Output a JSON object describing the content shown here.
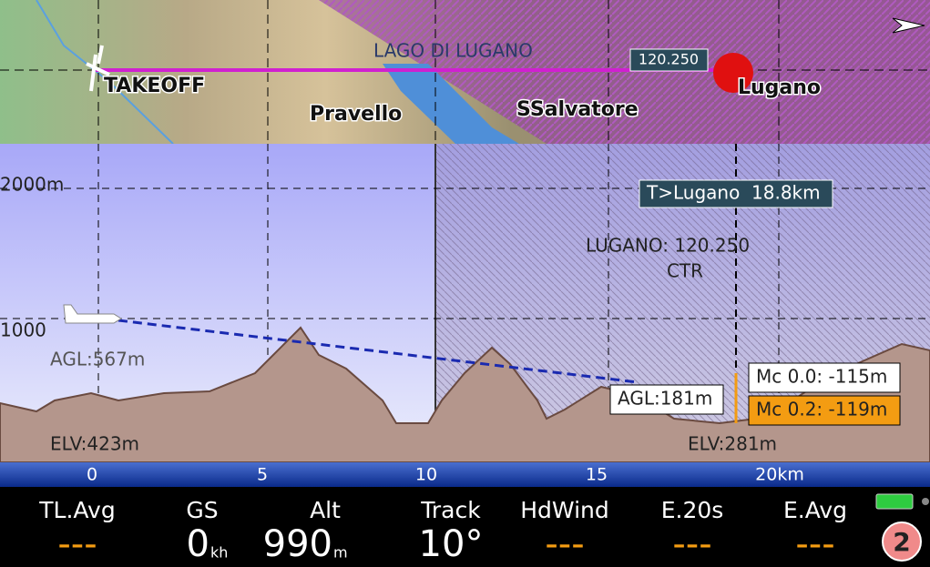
{
  "map": {
    "lake": "LAGO DI LUGANO",
    "frequency": "120.250",
    "takeoff": "TAKEOFF",
    "pravello": "Pravello",
    "salvatore": "SSalvatore",
    "lugano": "Lugano"
  },
  "profile": {
    "alt_2000": "2000m",
    "alt_1000": "1000",
    "agl_start": "AGL:567m",
    "elv_start": "ELV:423m",
    "target": "T>Lugano  18.8km",
    "airspace_name": "LUGANO: 120.250",
    "airspace_class": "CTR",
    "agl_end": "AGL:181m",
    "mc0": "Mc 0.0: -115m",
    "mc2": "Mc 0.2: -119m",
    "elv_end": "ELV:281m"
  },
  "axis": {
    "labels": [
      "0",
      "5",
      "10",
      "15",
      "20km"
    ]
  },
  "infoboxes": [
    {
      "title": "TL.Avg",
      "value": "---"
    },
    {
      "title": "GS",
      "value": "0",
      "unit": "kh"
    },
    {
      "title": "Alt",
      "value": "990",
      "unit": "m"
    },
    {
      "title": "Track",
      "value": "10°"
    },
    {
      "title": "HdWind",
      "value": "---"
    },
    {
      "title": "E.20s",
      "value": "---"
    },
    {
      "title": "E.Avg",
      "value": "---"
    }
  ],
  "badge": "2"
}
